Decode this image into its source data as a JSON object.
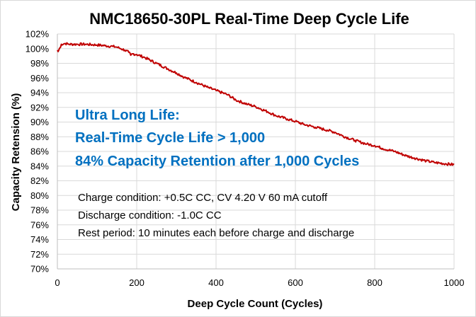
{
  "chart_data": {
    "type": "line",
    "title": "NMC18650-30PL Real-Time Deep Cycle Life",
    "xlabel": "Deep Cycle Count (Cycles)",
    "ylabel": "Capacity Retension (%)",
    "xlim": [
      0,
      1000
    ],
    "ylim": [
      70,
      102
    ],
    "x_ticks": [
      "0",
      "200",
      "400",
      "600",
      "800",
      "1000"
    ],
    "y_ticks": [
      "70%",
      "72%",
      "74%",
      "76%",
      "78%",
      "80%",
      "82%",
      "84%",
      "86%",
      "88%",
      "90%",
      "92%",
      "94%",
      "96%",
      "98%",
      "100%",
      "102%"
    ],
    "grid": true,
    "legend": "none",
    "series": [
      {
        "color": "#c00000",
        "x": [
          0,
          2,
          5,
          8,
          10,
          20,
          30,
          50,
          70,
          100,
          120,
          140,
          150,
          160,
          170,
          180,
          185,
          190,
          200,
          220,
          250,
          280,
          300,
          320,
          350,
          380,
          400,
          430,
          450,
          480,
          500,
          530,
          550,
          580,
          600,
          620,
          650,
          680,
          700,
          720,
          750,
          780,
          800,
          820,
          850,
          880,
          900,
          930,
          950,
          980,
          1000
        ],
        "y": [
          99.8,
          99.6,
          100.0,
          100.2,
          100.6,
          100.7,
          100.6,
          100.6,
          100.6,
          100.5,
          100.4,
          100.3,
          100.2,
          100.0,
          99.8,
          99.5,
          99.1,
          99.3,
          99.2,
          98.8,
          98.0,
          97.2,
          96.7,
          96.1,
          95.4,
          94.7,
          94.3,
          93.7,
          93.0,
          92.4,
          92.1,
          91.4,
          90.9,
          90.4,
          90.1,
          89.7,
          89.3,
          88.9,
          88.6,
          88.1,
          87.5,
          87.0,
          86.8,
          86.4,
          86.0,
          85.4,
          85.1,
          84.7,
          84.5,
          84.3,
          84.2
        ]
      }
    ],
    "annotations": {
      "headline": [
        "Ultra Long Life:",
        "Real-Time Cycle Life > 1,000",
        "84% Capacity Retention after 1,000 Cycles"
      ],
      "conditions": [
        "Charge condition: +0.5C CC, CV 4.20 V 60 mA cutoff",
        "Discharge condition: -1.0C CC",
        "Rest period: 10 minutes each before charge and discharge"
      ]
    }
  }
}
